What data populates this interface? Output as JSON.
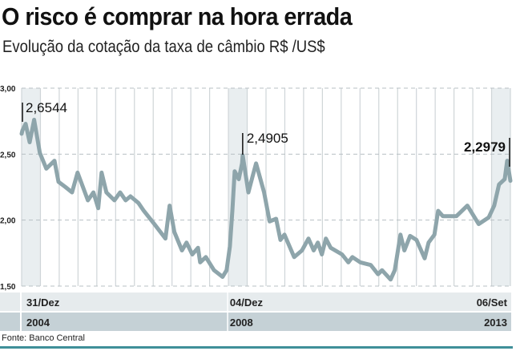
{
  "title": "O risco é comprar na hora errada",
  "subtitle": "Evolução da cotação da taxa de câmbio R$ /US$",
  "source": "Fonte: Banco Central",
  "colors": {
    "line": "#8ea5ab",
    "band": "#e9eef0",
    "row1": "#e6ebed",
    "row2": "#c5d1d6",
    "accent_rule": "#3f8f99"
  },
  "chart_data": {
    "type": "line",
    "title": "O risco é comprar na hora errada",
    "subtitle": "Evolução da cotação da taxa de câmbio R$ /US$",
    "xlabel": "",
    "ylabel": "",
    "ylim": [
      1.5,
      3.0
    ],
    "xlim": [
      "2004-12-31",
      "2013-09-06"
    ],
    "yticks": [
      "3,00",
      "2,50",
      "2,00",
      "1,50"
    ],
    "ytick_values": [
      3.0,
      2.5,
      2.0,
      1.5
    ],
    "grid": true,
    "x_labels": [
      {
        "date": "2004-12-31",
        "day": "31/Dez",
        "year": "2004",
        "align": "left"
      },
      {
        "date": "2008-12-04",
        "day": "04/Dez",
        "year": "2008",
        "align": "left"
      },
      {
        "date": "2013-09-06",
        "day": "06/Set",
        "year": "2013",
        "align": "right"
      }
    ],
    "annotations": [
      {
        "date": "2004-12-31",
        "value": 2.6544,
        "label": "2,6544",
        "bold": false
      },
      {
        "date": "2008-12-04",
        "value": 2.4905,
        "label": "2,4905",
        "bold": false
      },
      {
        "date": "2013-09-06",
        "value": 2.2979,
        "label": "2,2979",
        "bold": true
      }
    ],
    "series": [
      {
        "x": [
          "2004-12-31",
          "2005-01-05",
          "2005-01-26",
          "2005-02-21",
          "2005-03-22",
          "2005-04-28",
          "2005-06-09",
          "2005-08-01",
          "2005-08-27",
          "2005-10-12",
          "2005-11-23",
          "2005-12-29",
          "2006-03-06",
          "2006-04-11",
          "2006-05-12",
          "2006-06-03",
          "2006-07-04",
          "2006-08-25",
          "2006-10-01",
          "2006-11-06",
          "2006-12-07",
          "2007-01-28",
          "2007-03-04",
          "2007-05-11",
          "2007-07-22",
          "2007-08-18",
          "2007-09-18",
          "2007-11-06",
          "2007-12-06",
          "2008-01-12",
          "2008-02-18",
          "2008-03-03",
          "2008-04-09",
          "2008-06-01",
          "2008-07-27",
          "2008-08-22",
          "2008-09-12",
          "2008-09-28",
          "2008-10-13",
          "2008-11-09",
          "2008-11-30",
          "2008-12-04",
          "2009-01-10",
          "2009-02-06",
          "2009-03-01",
          "2009-04-22",
          "2009-05-28",
          "2009-07-09",
          "2009-08-06",
          "2009-09-01",
          "2009-11-03",
          "2009-12-24",
          "2010-02-04",
          "2010-03-10",
          "2010-04-06",
          "2010-05-02",
          "2010-05-28",
          "2010-06-28",
          "2010-09-10",
          "2010-10-21",
          "2010-11-16",
          "2011-01-07",
          "2011-03-15",
          "2011-05-01",
          "2011-05-27",
          "2011-07-22",
          "2011-08-18",
          "2011-09-24",
          "2011-10-19",
          "2011-11-25",
          "2012-01-06",
          "2012-02-28",
          "2012-03-24",
          "2012-05-01",
          "2012-05-25",
          "2012-06-25",
          "2012-09-21",
          "2012-12-01",
          "2013-02-12",
          "2013-04-18",
          "2013-05-24",
          "2013-06-24",
          "2013-07-31",
          "2013-08-16",
          "2013-09-06"
        ],
        "values": [
          2.6544,
          2.68,
          2.73,
          2.59,
          2.76,
          2.51,
          2.39,
          2.45,
          2.29,
          2.25,
          2.21,
          2.36,
          2.15,
          2.21,
          2.09,
          2.36,
          2.21,
          2.15,
          2.21,
          2.15,
          2.18,
          2.13,
          2.07,
          1.97,
          1.86,
          2.11,
          1.91,
          1.77,
          1.83,
          1.74,
          1.79,
          1.68,
          1.72,
          1.62,
          1.57,
          1.62,
          1.8,
          2.07,
          2.37,
          2.31,
          2.43,
          2.4905,
          2.21,
          2.33,
          2.43,
          2.21,
          1.99,
          2.01,
          1.85,
          1.89,
          1.72,
          1.77,
          1.86,
          1.77,
          1.83,
          1.74,
          1.86,
          1.79,
          1.74,
          1.68,
          1.72,
          1.68,
          1.66,
          1.59,
          1.62,
          1.55,
          1.62,
          1.89,
          1.77,
          1.88,
          1.85,
          1.71,
          1.83,
          1.89,
          2.07,
          2.03,
          2.03,
          2.11,
          1.97,
          2.02,
          2.11,
          2.27,
          2.31,
          2.45,
          2.2979
        ]
      }
    ]
  }
}
